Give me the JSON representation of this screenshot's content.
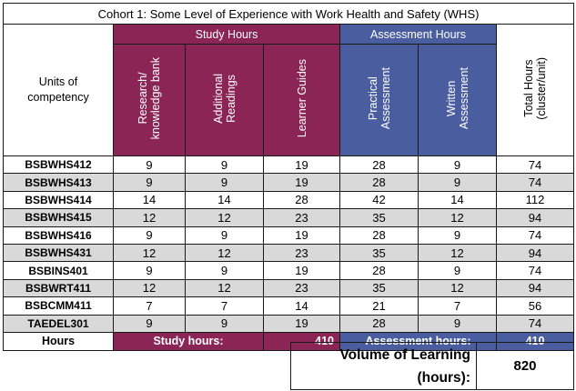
{
  "title": "Cohort 1:  Some Level of Experience with Work Health and Safety (WHS)",
  "groups": {
    "study": "Study Hours",
    "assessment": "Assessment Hours"
  },
  "columns": {
    "units": "Units of\ncompetency",
    "research": "Research/\nknowledge bank",
    "readings": "Additional\nReadings",
    "guides": "Learner Guides",
    "practical": "Practical\nAssessment",
    "written": "Written\nAssessment",
    "total": "Total Hours\n(cluster/unit)"
  },
  "rows": [
    {
      "unit": "BSBWHS412",
      "research": "9",
      "readings": "9",
      "guides": "19",
      "practical": "28",
      "written": "9",
      "total": "74"
    },
    {
      "unit": "BSBWHS413",
      "research": "9",
      "readings": "9",
      "guides": "19",
      "practical": "28",
      "written": "9",
      "total": "74"
    },
    {
      "unit": "BSBWHS414",
      "research": "14",
      "readings": "14",
      "guides": "28",
      "practical": "42",
      "written": "14",
      "total": "112"
    },
    {
      "unit": "BSBWHS415",
      "research": "12",
      "readings": "12",
      "guides": "23",
      "practical": "35",
      "written": "12",
      "total": "94"
    },
    {
      "unit": "BSBWHS416",
      "research": "9",
      "readings": "9",
      "guides": "19",
      "practical": "28",
      "written": "9",
      "total": "74"
    },
    {
      "unit": "BSBWHS431",
      "research": "12",
      "readings": "12",
      "guides": "23",
      "practical": "35",
      "written": "12",
      "total": "94"
    },
    {
      "unit": "BSBINS401",
      "research": "9",
      "readings": "9",
      "guides": "19",
      "practical": "28",
      "written": "9",
      "total": "74"
    },
    {
      "unit": "BSBWRT411",
      "research": "12",
      "readings": "12",
      "guides": "23",
      "practical": "35",
      "written": "12",
      "total": "94"
    },
    {
      "unit": "BSBCMM411",
      "research": "7",
      "readings": "7",
      "guides": "14",
      "practical": "21",
      "written": "7",
      "total": "56"
    },
    {
      "unit": "TAEDEL301",
      "research": "9",
      "readings": "9",
      "guides": "19",
      "practical": "28",
      "written": "9",
      "total": "74"
    }
  ],
  "hours_row": {
    "label": "Hours",
    "study_label": "Study hours:",
    "study_value": "410",
    "assessment_label": "Assessment hours:",
    "assessment_value": "410"
  },
  "volume": {
    "label": "Volume of Learning\n(hours):",
    "value": "820"
  },
  "colors": {
    "study": "#8a2556",
    "assessment": "#4a5d9e",
    "shade": "#d9d9d9"
  }
}
